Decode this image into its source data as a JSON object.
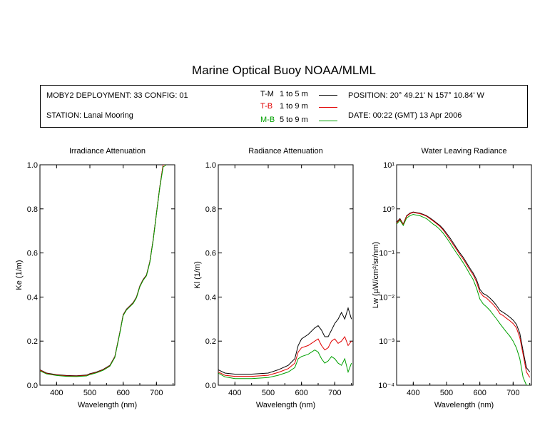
{
  "title": "Marine Optical Buoy NOAA/MLML",
  "info": {
    "deployment": "MOBY2 DEPLOYMENT: 33 CONFIG: 01",
    "station": "STATION: Lanai Mooring",
    "position": "POSITION: 20° 49.21' N   157° 10.84' W",
    "date": "DATE: 00:22 (GMT) 13 Apr 2006"
  },
  "legend": [
    {
      "label": "T-M",
      "range": "1 to 5  m",
      "color": "#000000"
    },
    {
      "label": "T-B",
      "range": "1 to 9  m",
      "color": "#e00000"
    },
    {
      "label": "M-B",
      "range": "5 to 9  m",
      "color": "#00a000"
    }
  ],
  "chart_data": [
    {
      "type": "line",
      "title": "Irradiance Attenuation",
      "xlabel": "Wavelength (nm)",
      "ylabel": "Ke  (1/m)",
      "xlim": [
        350,
        755
      ],
      "ylim": [
        0,
        1.0
      ],
      "xticks": [
        "400",
        "500",
        "600",
        "700"
      ],
      "yticks": [
        "0.0",
        "0.2",
        "0.4",
        "0.6",
        "0.8",
        "1.0"
      ],
      "series": [
        {
          "name": "T-M",
          "color": "#000000",
          "x": [
            350,
            370,
            400,
            430,
            460,
            490,
            500,
            520,
            540,
            560,
            575,
            590,
            600,
            610,
            620,
            630,
            640,
            650,
            660,
            670,
            680,
            690,
            700,
            710,
            720,
            730
          ],
          "y": [
            0.07,
            0.055,
            0.048,
            0.044,
            0.043,
            0.046,
            0.052,
            0.06,
            0.072,
            0.09,
            0.13,
            0.24,
            0.32,
            0.345,
            0.36,
            0.375,
            0.4,
            0.45,
            0.48,
            0.5,
            0.56,
            0.66,
            0.78,
            0.9,
            1.0,
            1.0
          ]
        },
        {
          "name": "T-B",
          "color": "#e00000",
          "x": [
            350,
            370,
            400,
            430,
            460,
            490,
            500,
            520,
            540,
            560,
            575,
            590,
            600,
            610,
            620,
            630,
            640,
            650,
            660,
            670,
            680,
            690,
            700,
            710,
            720,
            730
          ],
          "y": [
            0.068,
            0.053,
            0.046,
            0.042,
            0.041,
            0.044,
            0.05,
            0.058,
            0.07,
            0.088,
            0.128,
            0.238,
            0.318,
            0.343,
            0.358,
            0.373,
            0.398,
            0.448,
            0.478,
            0.498,
            0.558,
            0.658,
            0.778,
            0.898,
            1.0,
            1.0
          ]
        },
        {
          "name": "M-B",
          "color": "#00a000",
          "x": [
            350,
            370,
            400,
            430,
            460,
            490,
            500,
            520,
            540,
            560,
            575,
            590,
            600,
            610,
            620,
            630,
            640,
            650,
            660,
            670,
            680,
            690,
            700,
            710,
            720,
            730
          ],
          "y": [
            0.065,
            0.051,
            0.044,
            0.04,
            0.039,
            0.042,
            0.048,
            0.056,
            0.068,
            0.086,
            0.126,
            0.236,
            0.316,
            0.341,
            0.356,
            0.371,
            0.396,
            0.446,
            0.476,
            0.496,
            0.556,
            0.656,
            0.776,
            0.896,
            0.99,
            1.0
          ]
        }
      ]
    },
    {
      "type": "line",
      "title": "Radiance Attenuation",
      "xlabel": "Wavelength (nm)",
      "ylabel": "Kl  (1/m)",
      "xlim": [
        350,
        755
      ],
      "ylim": [
        0,
        1.0
      ],
      "xticks": [
        "400",
        "500",
        "600",
        "700"
      ],
      "yticks": [
        "0.0",
        "0.2",
        "0.4",
        "0.6",
        "0.8",
        "1.0"
      ],
      "series": [
        {
          "name": "T-M",
          "color": "#000000",
          "x": [
            350,
            370,
            400,
            450,
            500,
            530,
            560,
            580,
            590,
            600,
            620,
            640,
            650,
            660,
            670,
            680,
            690,
            700,
            710,
            720,
            730,
            740,
            750
          ],
          "y": [
            0.07,
            0.055,
            0.05,
            0.05,
            0.055,
            0.07,
            0.09,
            0.12,
            0.18,
            0.21,
            0.23,
            0.26,
            0.27,
            0.25,
            0.22,
            0.22,
            0.25,
            0.28,
            0.3,
            0.33,
            0.3,
            0.35,
            0.3
          ]
        },
        {
          "name": "T-B",
          "color": "#e00000",
          "x": [
            350,
            370,
            400,
            450,
            500,
            530,
            560,
            580,
            590,
            600,
            620,
            640,
            650,
            660,
            670,
            680,
            690,
            700,
            710,
            720,
            730,
            740,
            750
          ],
          "y": [
            0.06,
            0.045,
            0.04,
            0.04,
            0.045,
            0.058,
            0.075,
            0.1,
            0.15,
            0.17,
            0.18,
            0.2,
            0.21,
            0.18,
            0.16,
            0.17,
            0.2,
            0.21,
            0.19,
            0.2,
            0.22,
            0.18,
            0.2
          ]
        },
        {
          "name": "M-B",
          "color": "#00a000",
          "x": [
            350,
            370,
            400,
            450,
            500,
            530,
            560,
            580,
            590,
            600,
            620,
            640,
            650,
            660,
            670,
            680,
            690,
            700,
            710,
            720,
            730,
            740,
            750
          ],
          "y": [
            0.055,
            0.038,
            0.03,
            0.03,
            0.035,
            0.045,
            0.06,
            0.08,
            0.12,
            0.13,
            0.14,
            0.16,
            0.15,
            0.12,
            0.1,
            0.11,
            0.13,
            0.12,
            0.1,
            0.09,
            0.12,
            0.06,
            0.1
          ]
        }
      ]
    },
    {
      "type": "line",
      "title": "Water Leaving Radiance",
      "xlabel": "Wavelength (nm)",
      "ylabel": "Lw  (µW/cm²/sr/nm)",
      "xscale": "log-y",
      "xlim": [
        350,
        755
      ],
      "ylim": [
        0.0001,
        10
      ],
      "xticks": [
        "400",
        "500",
        "600",
        "700"
      ],
      "yticks": [
        "10⁻⁴",
        "10⁻³",
        "10⁻²",
        "10⁻¹",
        "10⁰",
        "10¹"
      ],
      "series": [
        {
          "name": "T-M",
          "color": "#000000",
          "x": [
            350,
            360,
            370,
            380,
            390,
            400,
            410,
            420,
            430,
            440,
            450,
            460,
            470,
            480,
            490,
            500,
            510,
            520,
            530,
            540,
            550,
            560,
            570,
            580,
            590,
            600,
            610,
            620,
            630,
            640,
            650,
            660,
            670,
            680,
            690,
            700,
            710,
            720,
            730,
            740,
            750
          ],
          "y": [
            0.5,
            0.6,
            0.45,
            0.7,
            0.8,
            0.85,
            0.82,
            0.8,
            0.75,
            0.7,
            0.62,
            0.55,
            0.48,
            0.42,
            0.35,
            0.28,
            0.22,
            0.17,
            0.13,
            0.1,
            0.08,
            0.06,
            0.045,
            0.035,
            0.025,
            0.015,
            0.012,
            0.011,
            0.0095,
            0.008,
            0.0065,
            0.005,
            0.0045,
            0.004,
            0.0035,
            0.003,
            0.0024,
            0.0015,
            0.0006,
            0.00025,
            0.0002
          ]
        },
        {
          "name": "T-B",
          "color": "#e00000",
          "x": [
            350,
            360,
            370,
            380,
            390,
            400,
            410,
            420,
            430,
            440,
            450,
            460,
            470,
            480,
            490,
            500,
            510,
            520,
            530,
            540,
            550,
            560,
            570,
            580,
            590,
            600,
            610,
            620,
            630,
            640,
            650,
            660,
            670,
            680,
            690,
            700,
            710,
            720,
            730,
            740,
            750
          ],
          "y": [
            0.48,
            0.58,
            0.44,
            0.68,
            0.78,
            0.83,
            0.8,
            0.78,
            0.73,
            0.68,
            0.6,
            0.53,
            0.46,
            0.4,
            0.33,
            0.26,
            0.2,
            0.155,
            0.12,
            0.092,
            0.073,
            0.055,
            0.041,
            0.032,
            0.022,
            0.013,
            0.0105,
            0.0095,
            0.008,
            0.0068,
            0.0055,
            0.0042,
            0.0038,
            0.0033,
            0.0029,
            0.0025,
            0.002,
            0.0012,
            0.0005,
            0.0002,
            0.00015
          ]
        },
        {
          "name": "M-B",
          "color": "#00a000",
          "x": [
            350,
            360,
            370,
            380,
            390,
            400,
            410,
            420,
            430,
            440,
            450,
            460,
            470,
            480,
            490,
            500,
            510,
            520,
            530,
            540,
            550,
            560,
            570,
            580,
            590,
            600,
            610,
            620,
            630,
            640,
            650,
            660,
            670,
            680,
            690,
            700,
            710,
            720,
            730,
            740,
            750
          ],
          "y": [
            0.45,
            0.55,
            0.42,
            0.62,
            0.7,
            0.75,
            0.72,
            0.7,
            0.65,
            0.6,
            0.52,
            0.45,
            0.4,
            0.34,
            0.28,
            0.22,
            0.17,
            0.13,
            0.1,
            0.078,
            0.06,
            0.045,
            0.033,
            0.025,
            0.016,
            0.009,
            0.007,
            0.006,
            0.005,
            0.004,
            0.0032,
            0.0025,
            0.002,
            0.0016,
            0.0013,
            0.001,
            0.0007,
            0.0004,
            0.00015,
            0.0001,
            0.0001
          ]
        }
      ]
    }
  ]
}
